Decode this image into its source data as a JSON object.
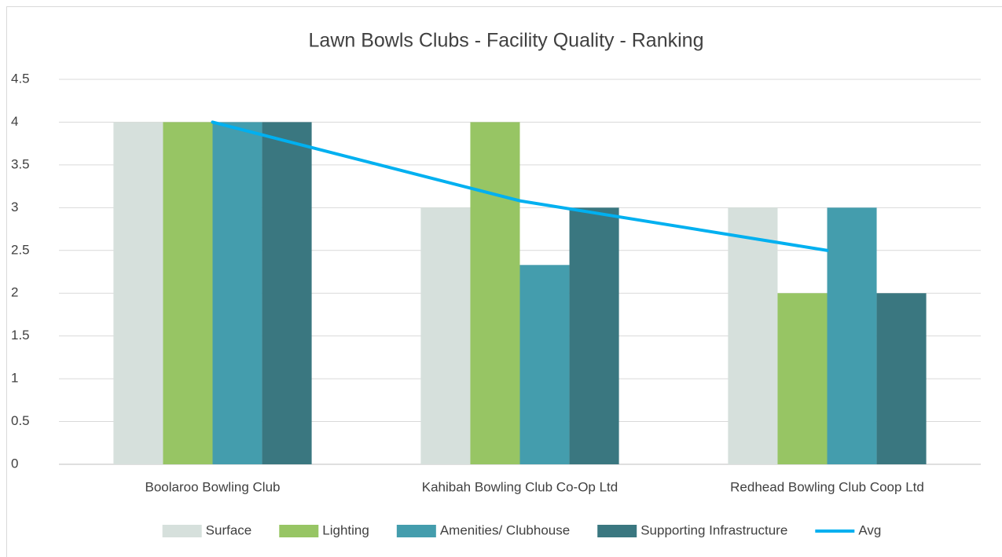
{
  "chart_data": {
    "type": "bar",
    "title": "Lawn Bowls Clubs - Facility Quality - Ranking",
    "categories": [
      "Boolaroo Bowling Club",
      "Kahibah Bowling Club Co-Op Ltd",
      "Redhead Bowling Club Coop Ltd"
    ],
    "series": [
      {
        "name": "Surface",
        "color": "#d6e0dc",
        "values": [
          4,
          3,
          3
        ]
      },
      {
        "name": "Lighting",
        "color": "#97c564",
        "values": [
          4,
          4,
          2
        ]
      },
      {
        "name": "Amenities/ Clubhouse",
        "color": "#449dad",
        "values": [
          4,
          2.33,
          3
        ]
      },
      {
        "name": "Supporting Infrastructure",
        "color": "#3a7780",
        "values": [
          4,
          3,
          2
        ]
      },
      {
        "name": "Avg",
        "color": "#00b0f0",
        "type": "line",
        "values": [
          4,
          3.08,
          2.5
        ]
      }
    ],
    "ylim": [
      0,
      4.5
    ],
    "yticks": [
      0,
      0.5,
      1,
      1.5,
      2,
      2.5,
      3,
      3.5,
      4,
      4.5
    ],
    "grid": true,
    "legend": "bottom"
  }
}
